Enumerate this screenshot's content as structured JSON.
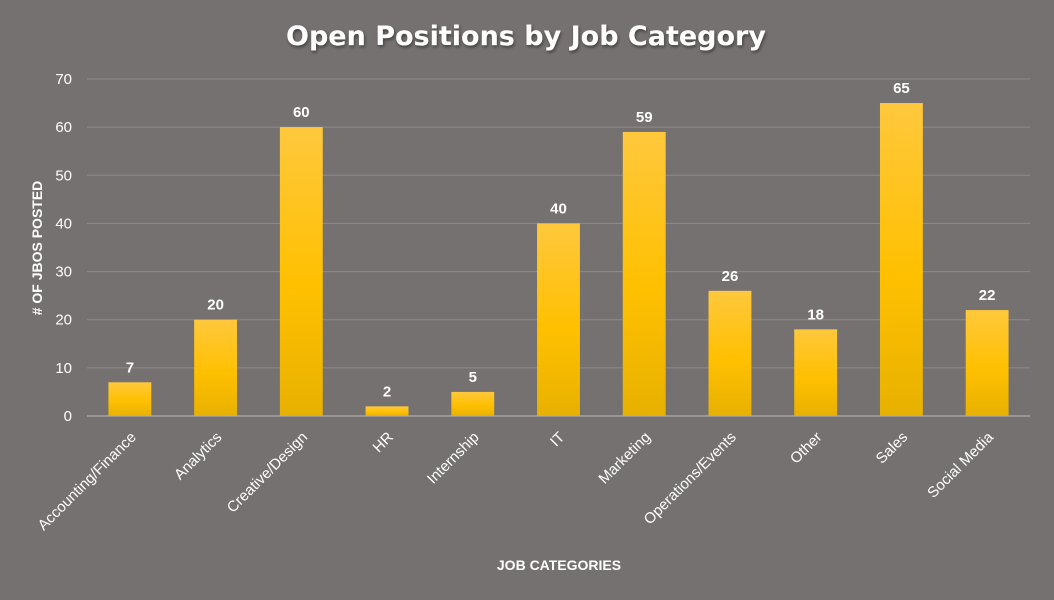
{
  "chart_data": {
    "type": "bar",
    "title": "Open Positions by Job Category",
    "xlabel": "JOB CATEGORIES",
    "ylabel": "# OF JBOS POSTED",
    "categories": [
      "Accounting/Finance",
      "Analytics",
      "Creative/Design",
      "HR",
      "Internship",
      "IT",
      "Marketing",
      "Operations/Events",
      "Other",
      "Sales",
      "Social Media"
    ],
    "values": [
      7,
      20,
      60,
      2,
      5,
      40,
      59,
      26,
      18,
      65,
      22
    ],
    "ylim": [
      0,
      70
    ],
    "yticks": [
      "0",
      "10",
      "20",
      "30",
      "40",
      "50",
      "60",
      "70"
    ],
    "grid": true,
    "legend": "none",
    "data_labels": true
  },
  "colors": {
    "background": "#767171",
    "bar_top": "#ffc83d",
    "bar_mid": "#ffc000",
    "bar_bottom": "#e8b100",
    "text": "#ffffff"
  }
}
